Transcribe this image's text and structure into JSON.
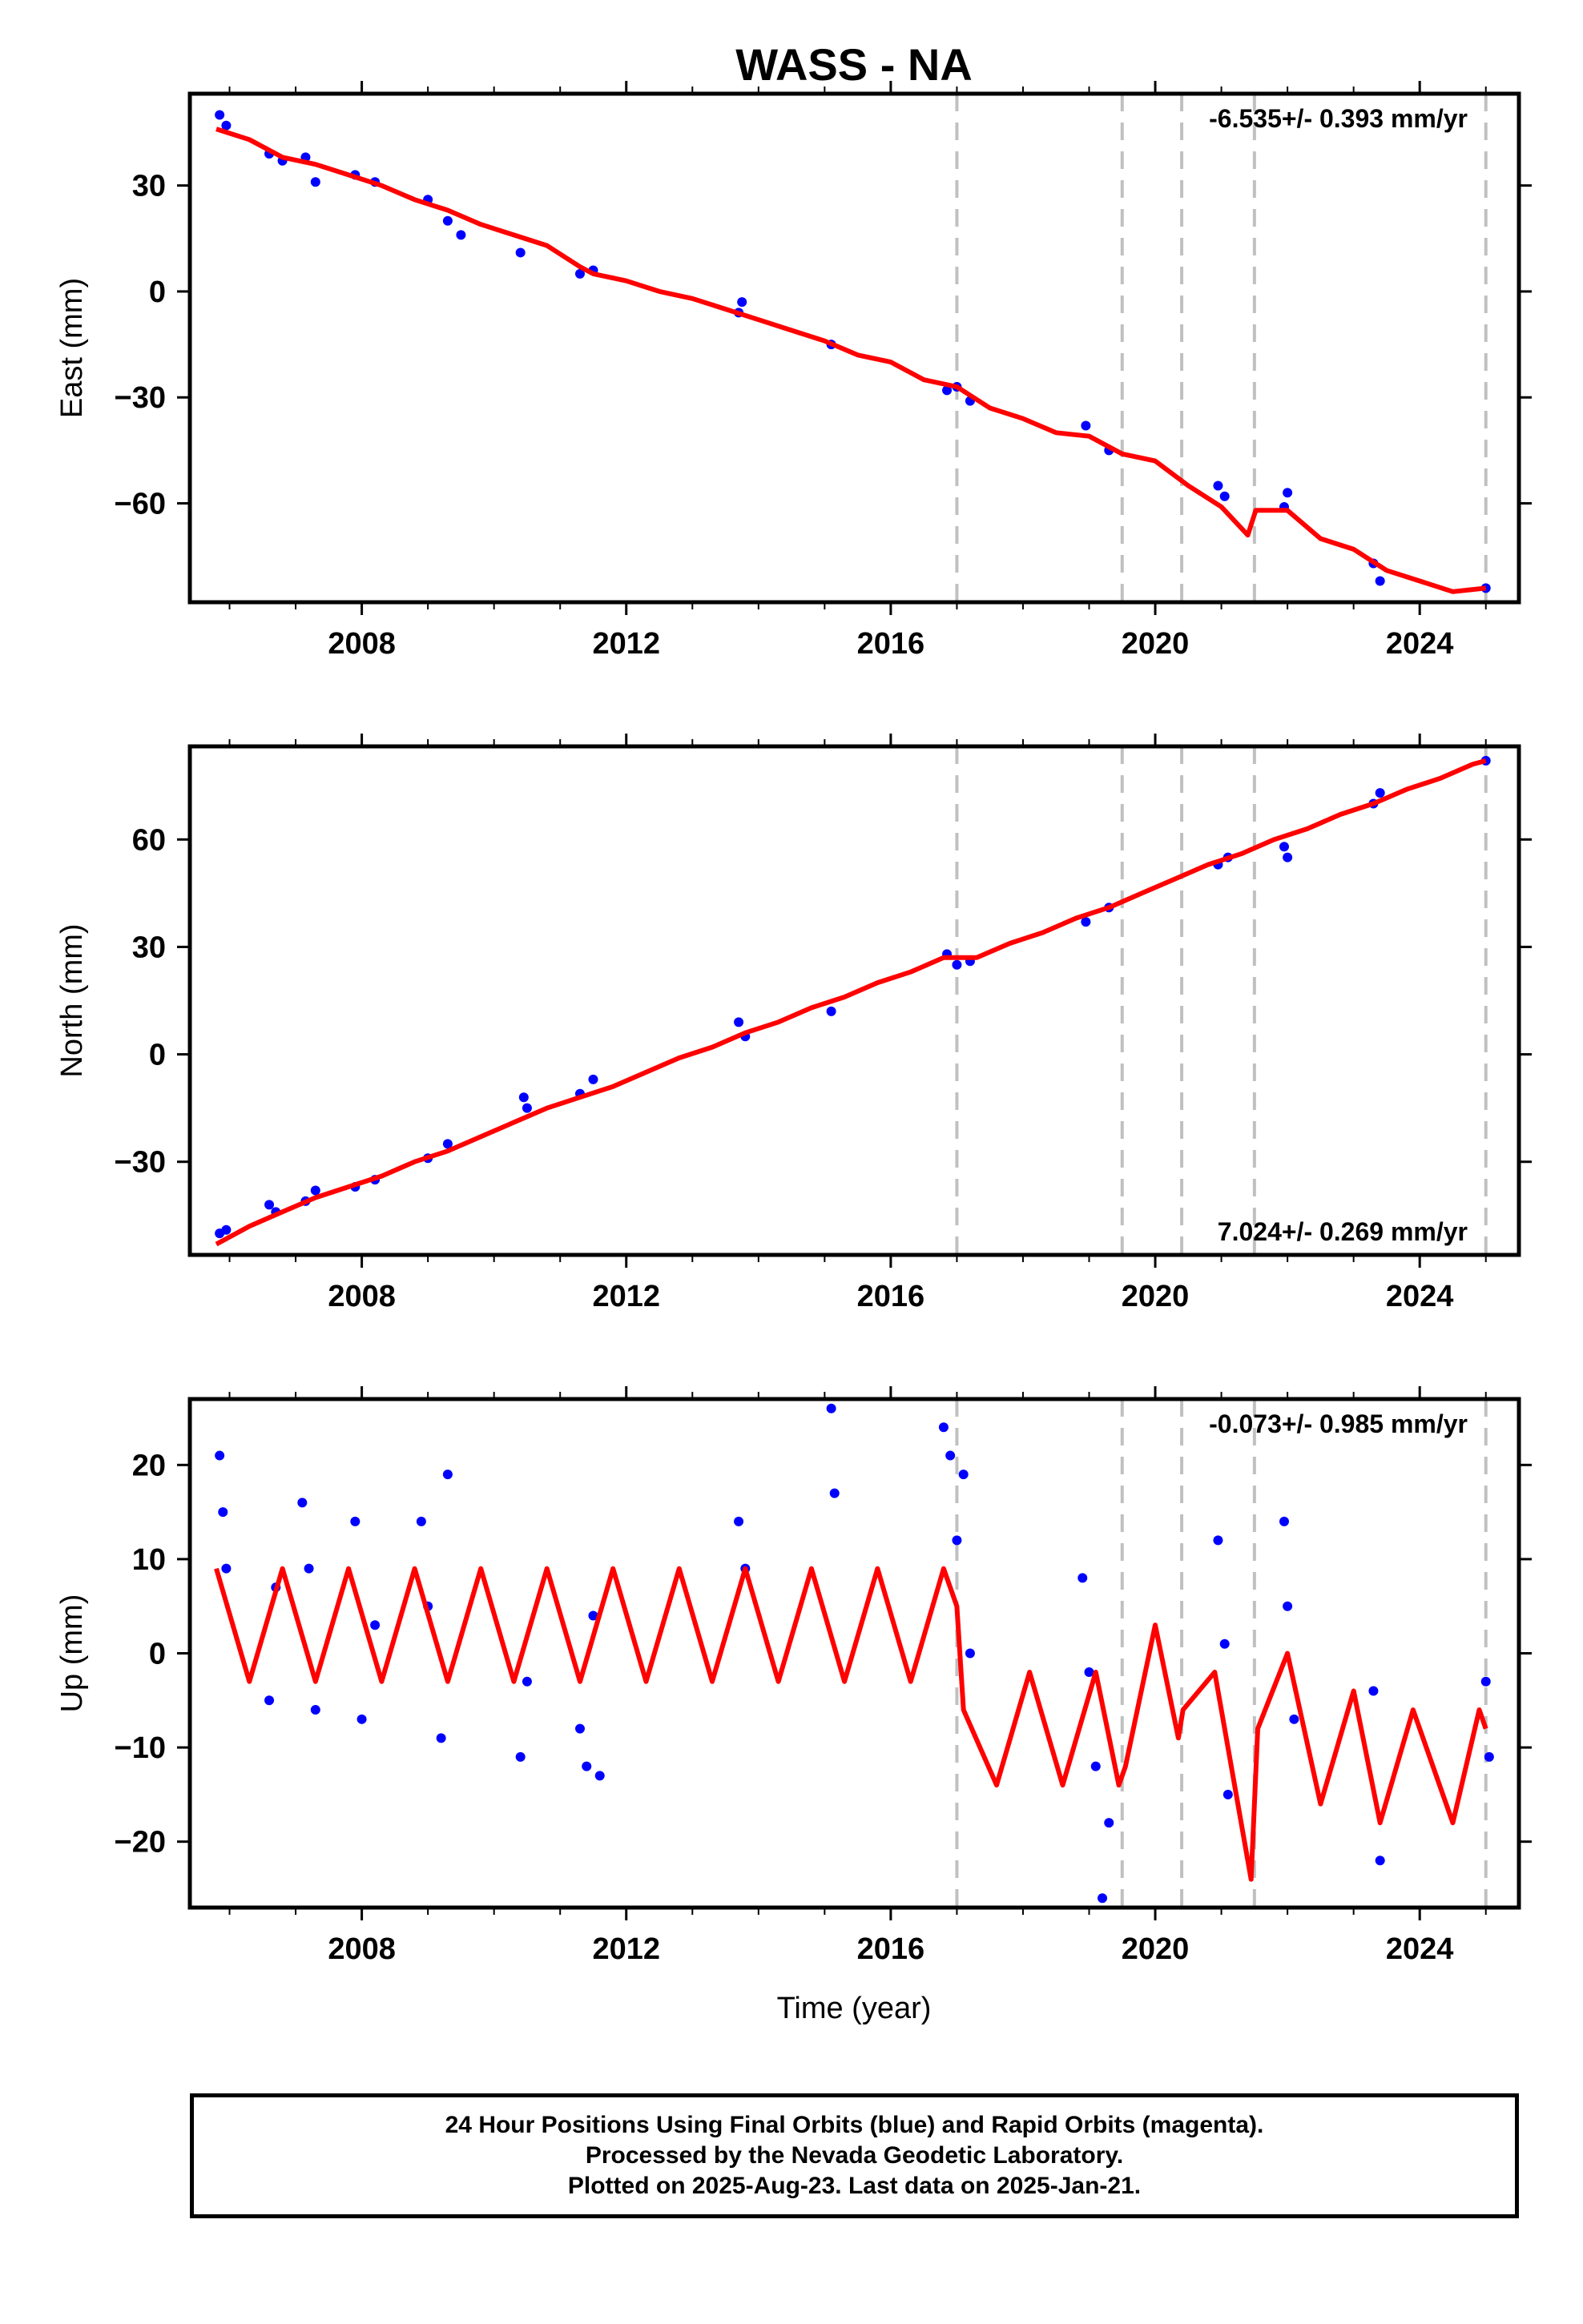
{
  "title": "WASS - NA",
  "xlabel": "Time (year)",
  "colors": {
    "data": "#0000ff",
    "model": "#ff0000",
    "steps": "#c0c0c0"
  },
  "footer": {
    "line1": "24 Hour Positions Using Final Orbits (blue) and Rapid Orbits (magenta).",
    "line2": "Processed by the Nevada Geodetic Laboratory.",
    "line3": "Plotted on 2025-Aug-23. Last data on 2025-Jan-21."
  },
  "chart_data": [
    {
      "type": "scatter",
      "component": "East",
      "ylabel": "East (mm)",
      "rate_label": "-6.535+/- 0.393 mm/yr",
      "rate_position": "top-right",
      "xlim": [
        2005.4,
        2025.5
      ],
      "ylim": [
        -88,
        56
      ],
      "xticks": [
        2008,
        2012,
        2016,
        2020,
        2024
      ],
      "yticks": [
        -60,
        -30,
        0,
        30
      ],
      "step_lines": [
        2017.0,
        2019.5,
        2020.4,
        2021.5,
        2025.0
      ],
      "points": [
        [
          2005.85,
          50
        ],
        [
          2005.95,
          47
        ],
        [
          2006.6,
          39
        ],
        [
          2006.8,
          37
        ],
        [
          2007.15,
          38
        ],
        [
          2007.3,
          31
        ],
        [
          2007.9,
          33
        ],
        [
          2008.2,
          31
        ],
        [
          2009.0,
          26
        ],
        [
          2009.3,
          20
        ],
        [
          2009.5,
          16
        ],
        [
          2010.4,
          11
        ],
        [
          2011.3,
          5
        ],
        [
          2011.5,
          6
        ],
        [
          2013.7,
          -6
        ],
        [
          2013.75,
          -3
        ],
        [
          2015.1,
          -15
        ],
        [
          2016.85,
          -28
        ],
        [
          2017.0,
          -27
        ],
        [
          2017.2,
          -31
        ],
        [
          2018.95,
          -38
        ],
        [
          2019.3,
          -45
        ],
        [
          2020.95,
          -55
        ],
        [
          2021.05,
          -58
        ],
        [
          2021.95,
          -61
        ],
        [
          2022.0,
          -57
        ],
        [
          2023.3,
          -77
        ],
        [
          2023.4,
          -82
        ],
        [
          2025.0,
          -84
        ]
      ],
      "model": [
        [
          2005.8,
          46
        ],
        [
          2006.3,
          43
        ],
        [
          2006.8,
          38
        ],
        [
          2007.3,
          36
        ],
        [
          2007.8,
          33
        ],
        [
          2008.3,
          30
        ],
        [
          2008.8,
          26
        ],
        [
          2009.3,
          23
        ],
        [
          2009.8,
          19
        ],
        [
          2010.3,
          16
        ],
        [
          2010.8,
          13
        ],
        [
          2011.3,
          7
        ],
        [
          2011.5,
          5
        ],
        [
          2012.0,
          3
        ],
        [
          2012.5,
          0
        ],
        [
          2013.0,
          -2
        ],
        [
          2013.5,
          -5
        ],
        [
          2014.0,
          -8
        ],
        [
          2014.5,
          -11
        ],
        [
          2015.0,
          -14
        ],
        [
          2015.5,
          -18
        ],
        [
          2016.0,
          -20
        ],
        [
          2016.5,
          -25
        ],
        [
          2017.0,
          -27
        ],
        [
          2017.5,
          -33
        ],
        [
          2018.0,
          -36
        ],
        [
          2018.5,
          -40
        ],
        [
          2019.0,
          -41
        ],
        [
          2019.5,
          -46
        ],
        [
          2020.0,
          -48
        ],
        [
          2020.5,
          -55
        ],
        [
          2021.0,
          -61
        ],
        [
          2021.4,
          -69
        ],
        [
          2021.52,
          -62
        ],
        [
          2022.0,
          -62
        ],
        [
          2022.5,
          -70
        ],
        [
          2023.0,
          -73
        ],
        [
          2023.5,
          -79
        ],
        [
          2024.0,
          -82
        ],
        [
          2024.5,
          -85
        ],
        [
          2025.0,
          -84
        ]
      ]
    },
    {
      "type": "scatter",
      "component": "North",
      "ylabel": "North (mm)",
      "rate_label": "7.024+/- 0.269 mm/yr",
      "rate_position": "bottom-right",
      "xlim": [
        2005.4,
        2025.5
      ],
      "ylim": [
        -56,
        86
      ],
      "xticks": [
        2008,
        2012,
        2016,
        2020,
        2024
      ],
      "yticks": [
        -30,
        0,
        30,
        60
      ],
      "step_lines": [
        2017.0,
        2019.5,
        2020.4,
        2021.5,
        2025.0
      ],
      "points": [
        [
          2005.85,
          -50
        ],
        [
          2005.95,
          -49
        ],
        [
          2006.6,
          -42
        ],
        [
          2006.7,
          -44
        ],
        [
          2007.15,
          -41
        ],
        [
          2007.3,
          -38
        ],
        [
          2007.9,
          -37
        ],
        [
          2008.2,
          -35
        ],
        [
          2009.0,
          -29
        ],
        [
          2009.3,
          -25
        ],
        [
          2010.45,
          -12
        ],
        [
          2010.5,
          -15
        ],
        [
          2011.3,
          -11
        ],
        [
          2011.5,
          -7
        ],
        [
          2013.7,
          9
        ],
        [
          2013.8,
          5
        ],
        [
          2015.1,
          12
        ],
        [
          2016.85,
          28
        ],
        [
          2017.0,
          25
        ],
        [
          2017.2,
          26
        ],
        [
          2018.95,
          37
        ],
        [
          2019.3,
          41
        ],
        [
          2020.95,
          53
        ],
        [
          2021.1,
          55
        ],
        [
          2021.95,
          58
        ],
        [
          2022.0,
          55
        ],
        [
          2023.3,
          70
        ],
        [
          2023.4,
          73
        ],
        [
          2025.0,
          82
        ]
      ],
      "model": [
        [
          2005.8,
          -53
        ],
        [
          2006.3,
          -48
        ],
        [
          2006.8,
          -44
        ],
        [
          2007.3,
          -40
        ],
        [
          2007.8,
          -37
        ],
        [
          2008.3,
          -34
        ],
        [
          2008.8,
          -30
        ],
        [
          2009.3,
          -27
        ],
        [
          2009.8,
          -23
        ],
        [
          2010.3,
          -19
        ],
        [
          2010.8,
          -15
        ],
        [
          2011.3,
          -12
        ],
        [
          2011.8,
          -9
        ],
        [
          2012.3,
          -5
        ],
        [
          2012.8,
          -1
        ],
        [
          2013.3,
          2
        ],
        [
          2013.8,
          6
        ],
        [
          2014.3,
          9
        ],
        [
          2014.8,
          13
        ],
        [
          2015.3,
          16
        ],
        [
          2015.8,
          20
        ],
        [
          2016.3,
          23
        ],
        [
          2016.8,
          27
        ],
        [
          2017.3,
          27
        ],
        [
          2017.8,
          31
        ],
        [
          2018.3,
          34
        ],
        [
          2018.8,
          38
        ],
        [
          2019.3,
          41
        ],
        [
          2019.8,
          45
        ],
        [
          2020.3,
          49
        ],
        [
          2020.8,
          53
        ],
        [
          2021.3,
          56
        ],
        [
          2021.8,
          60
        ],
        [
          2022.3,
          63
        ],
        [
          2022.8,
          67
        ],
        [
          2023.3,
          70
        ],
        [
          2023.8,
          74
        ],
        [
          2024.3,
          77
        ],
        [
          2024.8,
          81
        ],
        [
          2025.0,
          82
        ]
      ]
    },
    {
      "type": "scatter",
      "component": "Up",
      "ylabel": "Up (mm)",
      "rate_label": "-0.073+/- 0.985 mm/yr",
      "rate_position": "top-right",
      "xlim": [
        2005.4,
        2025.5
      ],
      "ylim": [
        -27,
        27
      ],
      "xticks": [
        2008,
        2012,
        2016,
        2020,
        2024
      ],
      "yticks": [
        -20,
        -10,
        0,
        10,
        20
      ],
      "step_lines": [
        2017.0,
        2019.5,
        2020.4,
        2021.5,
        2025.0
      ],
      "points": [
        [
          2005.85,
          21
        ],
        [
          2005.9,
          15
        ],
        [
          2005.95,
          9
        ],
        [
          2006.6,
          -5
        ],
        [
          2006.7,
          7
        ],
        [
          2007.1,
          16
        ],
        [
          2007.2,
          9
        ],
        [
          2007.3,
          -6
        ],
        [
          2007.9,
          14
        ],
        [
          2008.0,
          -7
        ],
        [
          2008.2,
          3
        ],
        [
          2008.9,
          14
        ],
        [
          2009.0,
          5
        ],
        [
          2009.2,
          -9
        ],
        [
          2009.3,
          19
        ],
        [
          2010.4,
          -11
        ],
        [
          2010.5,
          -3
        ],
        [
          2011.3,
          -8
        ],
        [
          2011.4,
          -12
        ],
        [
          2011.5,
          4
        ],
        [
          2011.6,
          -13
        ],
        [
          2013.7,
          14
        ],
        [
          2013.8,
          9
        ],
        [
          2015.1,
          26
        ],
        [
          2015.15,
          17
        ],
        [
          2016.8,
          24
        ],
        [
          2016.9,
          21
        ],
        [
          2017.0,
          12
        ],
        [
          2017.1,
          19
        ],
        [
          2017.2,
          0
        ],
        [
          2018.9,
          8
        ],
        [
          2019.0,
          -2
        ],
        [
          2019.1,
          -12
        ],
        [
          2019.2,
          -26
        ],
        [
          2019.3,
          -18
        ],
        [
          2020.95,
          12
        ],
        [
          2021.05,
          1
        ],
        [
          2021.1,
          -15
        ],
        [
          2021.95,
          14
        ],
        [
          2022.0,
          5
        ],
        [
          2022.1,
          -7
        ],
        [
          2023.3,
          -4
        ],
        [
          2023.4,
          -22
        ],
        [
          2025.0,
          -3
        ],
        [
          2025.05,
          -11
        ]
      ],
      "model": [
        [
          2005.8,
          9
        ],
        [
          2006.3,
          -3
        ],
        [
          2006.8,
          9
        ],
        [
          2007.3,
          -3
        ],
        [
          2007.8,
          9
        ],
        [
          2008.3,
          -3
        ],
        [
          2008.8,
          9
        ],
        [
          2009.3,
          -3
        ],
        [
          2009.8,
          9
        ],
        [
          2010.3,
          -3
        ],
        [
          2010.8,
          9
        ],
        [
          2011.3,
          -3
        ],
        [
          2011.8,
          9
        ],
        [
          2012.3,
          -3
        ],
        [
          2012.8,
          9
        ],
        [
          2013.3,
          -3
        ],
        [
          2013.8,
          9
        ],
        [
          2014.3,
          -3
        ],
        [
          2014.8,
          9
        ],
        [
          2015.3,
          -3
        ],
        [
          2015.8,
          9
        ],
        [
          2016.3,
          -3
        ],
        [
          2016.8,
          9
        ],
        [
          2017.0,
          5
        ],
        [
          2017.1,
          -6
        ],
        [
          2017.6,
          -14
        ],
        [
          2018.1,
          -2
        ],
        [
          2018.6,
          -14
        ],
        [
          2019.1,
          -2
        ],
        [
          2019.45,
          -14
        ],
        [
          2019.55,
          -12
        ],
        [
          2020.0,
          3
        ],
        [
          2020.35,
          -9
        ],
        [
          2020.42,
          -6
        ],
        [
          2020.9,
          -2
        ],
        [
          2021.45,
          -24
        ],
        [
          2021.55,
          -8
        ],
        [
          2022.0,
          0
        ],
        [
          2022.5,
          -16
        ],
        [
          2023.0,
          -4
        ],
        [
          2023.4,
          -18
        ],
        [
          2023.9,
          -6
        ],
        [
          2024.5,
          -18
        ],
        [
          2024.9,
          -6
        ],
        [
          2025.0,
          -8
        ]
      ]
    }
  ]
}
